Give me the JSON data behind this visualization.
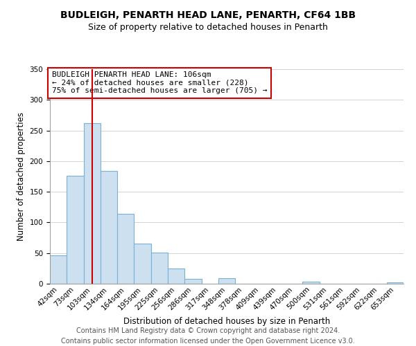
{
  "title": "BUDLEIGH, PENARTH HEAD LANE, PENARTH, CF64 1BB",
  "subtitle": "Size of property relative to detached houses in Penarth",
  "xlabel": "Distribution of detached houses by size in Penarth",
  "ylabel": "Number of detached properties",
  "bar_color": "#cce0f0",
  "bar_edge_color": "#7ab0d4",
  "bin_labels": [
    "42sqm",
    "73sqm",
    "103sqm",
    "134sqm",
    "164sqm",
    "195sqm",
    "225sqm",
    "256sqm",
    "286sqm",
    "317sqm",
    "348sqm",
    "378sqm",
    "409sqm",
    "439sqm",
    "470sqm",
    "500sqm",
    "531sqm",
    "561sqm",
    "592sqm",
    "622sqm",
    "653sqm"
  ],
  "bar_heights": [
    46,
    176,
    262,
    184,
    114,
    65,
    51,
    25,
    8,
    0,
    9,
    0,
    0,
    0,
    0,
    3,
    0,
    0,
    0,
    0,
    2
  ],
  "ylim": [
    0,
    350
  ],
  "yticks": [
    0,
    50,
    100,
    150,
    200,
    250,
    300,
    350
  ],
  "property_line_bin_index": 2,
  "property_line_color": "#cc0000",
  "annotation_text": "BUDLEIGH PENARTH HEAD LANE: 106sqm\n← 24% of detached houses are smaller (228)\n75% of semi-detached houses are larger (705) →",
  "footer_line1": "Contains HM Land Registry data © Crown copyright and database right 2024.",
  "footer_line2": "Contains public sector information licensed under the Open Government Licence v3.0.",
  "background_color": "#ffffff",
  "grid_color": "#cccccc",
  "title_fontsize": 10,
  "subtitle_fontsize": 9,
  "axis_label_fontsize": 8.5,
  "tick_fontsize": 7.5,
  "annotation_fontsize": 8,
  "footer_fontsize": 7
}
